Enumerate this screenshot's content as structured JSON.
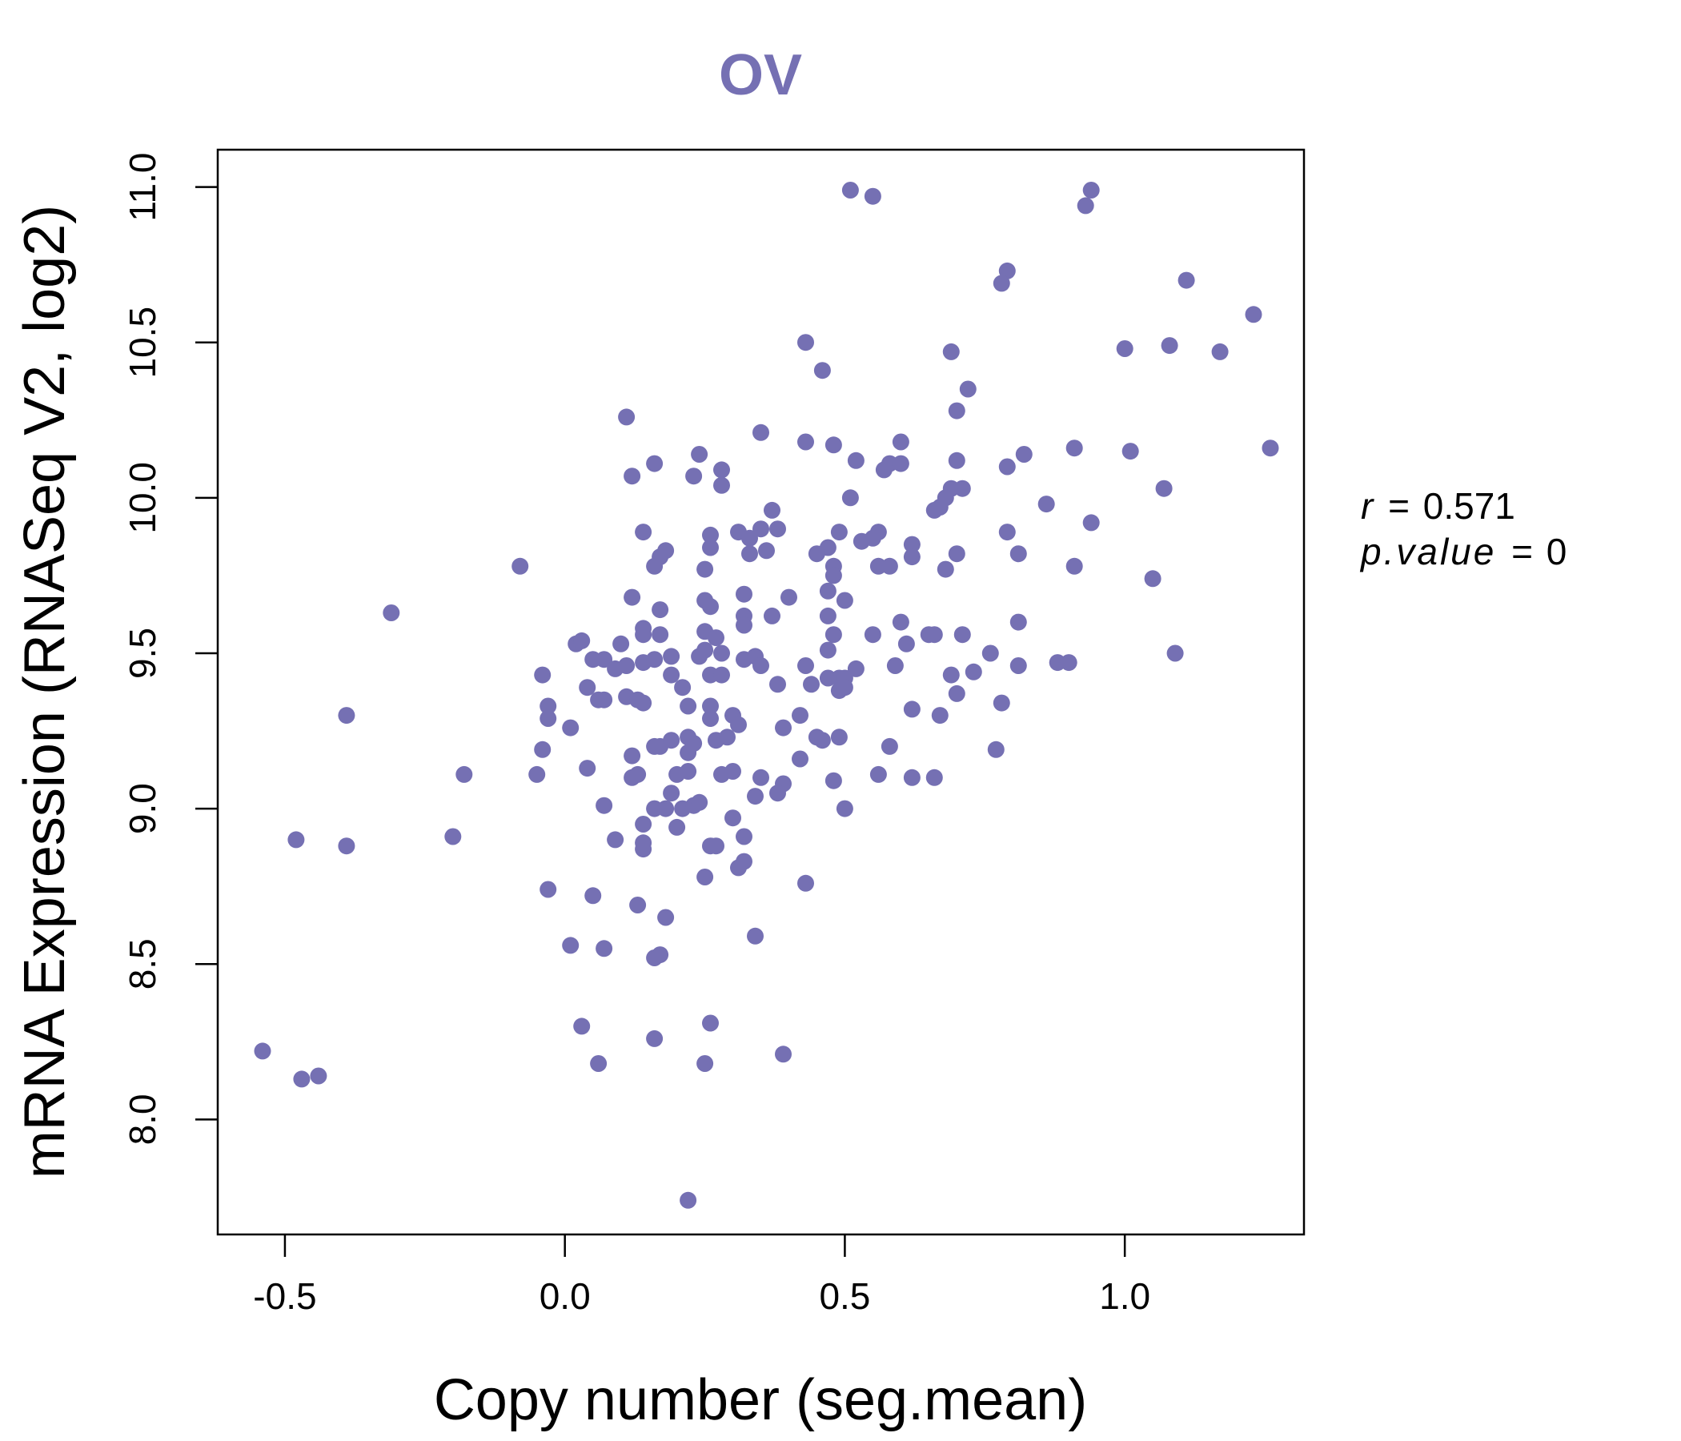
{
  "chart_data": {
    "type": "scatter",
    "title": "OV",
    "xlabel": "Copy number (seg.mean)",
    "ylabel": "mRNA Expression (RNASeq V2, log2)",
    "xlim": [
      -0.62,
      1.32
    ],
    "ylim": [
      7.63,
      11.12
    ],
    "xticks": [
      -0.5,
      0.0,
      0.5,
      1.0
    ],
    "xtick_labels": [
      "-0.5",
      "0.0",
      "0.5",
      "1.0"
    ],
    "yticks": [
      8.0,
      8.5,
      9.0,
      9.5,
      10.0,
      10.5,
      11.0
    ],
    "ytick_labels": [
      "8.0",
      "8.5",
      "9.0",
      "9.5",
      "10.0",
      "10.5",
      "11.0"
    ],
    "grid": false,
    "point_color": "#7570b3",
    "stats": {
      "r_label": "r",
      "r_value": "0.571",
      "p_label": "p.value",
      "p_value": "0"
    },
    "points": [
      [
        0.51,
        10.99
      ],
      [
        0.55,
        10.97
      ],
      [
        0.94,
        10.99
      ],
      [
        0.93,
        10.94
      ],
      [
        0.79,
        10.73
      ],
      [
        0.78,
        10.69
      ],
      [
        1.11,
        10.7
      ],
      [
        1.23,
        10.59
      ],
      [
        0.43,
        10.5
      ],
      [
        0.46,
        10.41
      ],
      [
        0.69,
        10.47
      ],
      [
        0.72,
        10.35
      ],
      [
        1.0,
        10.48
      ],
      [
        1.08,
        10.49
      ],
      [
        1.17,
        10.47
      ],
      [
        0.7,
        10.28
      ],
      [
        0.11,
        10.26
      ],
      [
        0.35,
        10.21
      ],
      [
        0.43,
        10.18
      ],
      [
        0.48,
        10.17
      ],
      [
        0.6,
        10.18
      ],
      [
        0.24,
        10.14
      ],
      [
        0.52,
        10.12
      ],
      [
        0.91,
        10.16
      ],
      [
        1.01,
        10.15
      ],
      [
        1.26,
        10.16
      ],
      [
        0.82,
        10.14
      ],
      [
        0.7,
        10.12
      ],
      [
        0.16,
        10.11
      ],
      [
        0.28,
        10.09
      ],
      [
        0.12,
        10.07
      ],
      [
        0.23,
        10.07
      ],
      [
        0.28,
        10.04
      ],
      [
        0.57,
        10.09
      ],
      [
        0.58,
        10.11
      ],
      [
        0.6,
        10.11
      ],
      [
        0.79,
        10.1
      ],
      [
        0.69,
        10.03
      ],
      [
        0.71,
        10.03
      ],
      [
        0.68,
        10.0
      ],
      [
        0.51,
        10.0
      ],
      [
        0.66,
        9.96
      ],
      [
        0.67,
        9.97
      ],
      [
        0.86,
        9.98
      ],
      [
        1.07,
        10.03
      ],
      [
        0.37,
        9.96
      ],
      [
        0.94,
        9.92
      ],
      [
        0.14,
        9.89
      ],
      [
        0.26,
        9.88
      ],
      [
        0.31,
        9.89
      ],
      [
        0.33,
        9.87
      ],
      [
        0.35,
        9.9
      ],
      [
        0.38,
        9.9
      ],
      [
        0.49,
        9.89
      ],
      [
        0.53,
        9.86
      ],
      [
        0.56,
        9.89
      ],
      [
        0.55,
        9.87
      ],
      [
        0.79,
        9.89
      ],
      [
        0.62,
        9.85
      ],
      [
        0.47,
        9.84
      ],
      [
        0.17,
        9.81
      ],
      [
        0.18,
        9.83
      ],
      [
        0.26,
        9.84
      ],
      [
        0.33,
        9.82
      ],
      [
        0.36,
        9.83
      ],
      [
        0.45,
        9.82
      ],
      [
        0.62,
        9.81
      ],
      [
        0.7,
        9.82
      ],
      [
        0.81,
        9.82
      ],
      [
        -0.08,
        9.78
      ],
      [
        0.16,
        9.78
      ],
      [
        0.25,
        9.77
      ],
      [
        0.48,
        9.78
      ],
      [
        0.56,
        9.78
      ],
      [
        0.58,
        9.78
      ],
      [
        0.68,
        9.77
      ],
      [
        0.91,
        9.78
      ],
      [
        0.48,
        9.75
      ],
      [
        0.47,
        9.7
      ],
      [
        1.05,
        9.74
      ],
      [
        0.12,
        9.68
      ],
      [
        0.32,
        9.69
      ],
      [
        0.4,
        9.68
      ],
      [
        0.17,
        9.64
      ],
      [
        0.25,
        9.67
      ],
      [
        0.26,
        9.65
      ],
      [
        0.5,
        9.67
      ],
      [
        0.32,
        9.62
      ],
      [
        0.37,
        9.62
      ],
      [
        0.47,
        9.62
      ],
      [
        0.32,
        9.59
      ],
      [
        0.6,
        9.6
      ],
      [
        0.81,
        9.6
      ],
      [
        -0.31,
        9.63
      ],
      [
        0.14,
        9.58
      ],
      [
        0.14,
        9.56
      ],
      [
        0.17,
        9.56
      ],
      [
        0.25,
        9.57
      ],
      [
        0.27,
        9.55
      ],
      [
        0.48,
        9.56
      ],
      [
        0.55,
        9.56
      ],
      [
        0.66,
        9.56
      ],
      [
        0.65,
        9.56
      ],
      [
        0.71,
        9.56
      ],
      [
        0.02,
        9.53
      ],
      [
        0.03,
        9.54
      ],
      [
        0.1,
        9.53
      ],
      [
        0.25,
        9.51
      ],
      [
        0.28,
        9.5
      ],
      [
        0.47,
        9.51
      ],
      [
        0.61,
        9.53
      ],
      [
        0.76,
        9.5
      ],
      [
        0.05,
        9.48
      ],
      [
        0.07,
        9.48
      ],
      [
        0.14,
        9.47
      ],
      [
        0.16,
        9.48
      ],
      [
        0.19,
        9.49
      ],
      [
        0.24,
        9.49
      ],
      [
        0.32,
        9.48
      ],
      [
        0.34,
        9.49
      ],
      [
        0.35,
        9.46
      ],
      [
        0.43,
        9.46
      ],
      [
        0.52,
        9.45
      ],
      [
        0.59,
        9.46
      ],
      [
        0.81,
        9.46
      ],
      [
        0.88,
        9.47
      ],
      [
        0.9,
        9.47
      ],
      [
        1.09,
        9.5
      ],
      [
        -0.04,
        9.43
      ],
      [
        0.09,
        9.45
      ],
      [
        0.11,
        9.46
      ],
      [
        0.19,
        9.43
      ],
      [
        0.26,
        9.43
      ],
      [
        0.28,
        9.43
      ],
      [
        0.47,
        9.42
      ],
      [
        0.49,
        9.42
      ],
      [
        0.5,
        9.42
      ],
      [
        0.69,
        9.43
      ],
      [
        0.73,
        9.44
      ],
      [
        0.04,
        9.39
      ],
      [
        0.06,
        9.35
      ],
      [
        0.07,
        9.35
      ],
      [
        0.11,
        9.36
      ],
      [
        0.13,
        9.35
      ],
      [
        0.14,
        9.34
      ],
      [
        0.21,
        9.39
      ],
      [
        0.26,
        9.33
      ],
      [
        0.38,
        9.4
      ],
      [
        0.44,
        9.4
      ],
      [
        0.49,
        9.38
      ],
      [
        0.5,
        9.39
      ],
      [
        0.7,
        9.37
      ],
      [
        -0.03,
        9.33
      ],
      [
        0.22,
        9.33
      ],
      [
        0.62,
        9.32
      ],
      [
        0.78,
        9.34
      ],
      [
        -0.39,
        9.3
      ],
      [
        -0.03,
        9.29
      ],
      [
        0.26,
        9.29
      ],
      [
        0.3,
        9.3
      ],
      [
        0.31,
        9.27
      ],
      [
        0.39,
        9.26
      ],
      [
        0.42,
        9.3
      ],
      [
        0.67,
        9.3
      ],
      [
        0.01,
        9.26
      ],
      [
        0.16,
        9.2
      ],
      [
        0.17,
        9.2
      ],
      [
        0.19,
        9.22
      ],
      [
        0.22,
        9.23
      ],
      [
        0.23,
        9.21
      ],
      [
        0.27,
        9.22
      ],
      [
        0.29,
        9.23
      ],
      [
        0.45,
        9.23
      ],
      [
        0.46,
        9.22
      ],
      [
        0.49,
        9.23
      ],
      [
        0.58,
        9.2
      ],
      [
        -0.04,
        9.19
      ],
      [
        0.12,
        9.17
      ],
      [
        0.22,
        9.18
      ],
      [
        0.42,
        9.16
      ],
      [
        0.77,
        9.19
      ],
      [
        -0.18,
        9.11
      ],
      [
        -0.05,
        9.11
      ],
      [
        0.04,
        9.13
      ],
      [
        0.12,
        9.1
      ],
      [
        0.13,
        9.11
      ],
      [
        0.2,
        9.11
      ],
      [
        0.22,
        9.12
      ],
      [
        0.28,
        9.11
      ],
      [
        0.3,
        9.12
      ],
      [
        0.35,
        9.1
      ],
      [
        0.48,
        9.09
      ],
      [
        0.56,
        9.11
      ],
      [
        0.62,
        9.1
      ],
      [
        0.66,
        9.1
      ],
      [
        0.19,
        9.05
      ],
      [
        0.39,
        9.08
      ],
      [
        0.38,
        9.05
      ],
      [
        0.07,
        9.01
      ],
      [
        0.16,
        9.0
      ],
      [
        0.18,
        9.0
      ],
      [
        0.21,
        9.0
      ],
      [
        0.23,
        9.01
      ],
      [
        0.24,
        9.02
      ],
      [
        0.34,
        9.04
      ],
      [
        0.5,
        9.0
      ],
      [
        0.3,
        8.97
      ],
      [
        0.14,
        8.95
      ],
      [
        0.2,
        8.94
      ],
      [
        0.09,
        8.9
      ],
      [
        -0.48,
        8.9
      ],
      [
        -0.39,
        8.88
      ],
      [
        -0.2,
        8.91
      ],
      [
        0.14,
        8.87
      ],
      [
        0.14,
        8.89
      ],
      [
        0.26,
        8.88
      ],
      [
        0.27,
        8.88
      ],
      [
        0.32,
        8.91
      ],
      [
        0.31,
        8.81
      ],
      [
        0.32,
        8.83
      ],
      [
        0.25,
        8.78
      ],
      [
        0.43,
        8.76
      ],
      [
        -0.03,
        8.74
      ],
      [
        0.05,
        8.72
      ],
      [
        0.13,
        8.69
      ],
      [
        0.18,
        8.65
      ],
      [
        0.34,
        8.59
      ],
      [
        0.01,
        8.56
      ],
      [
        0.07,
        8.55
      ],
      [
        0.17,
        8.53
      ],
      [
        0.16,
        8.52
      ],
      [
        0.03,
        8.3
      ],
      [
        0.26,
        8.31
      ],
      [
        0.16,
        8.26
      ],
      [
        0.39,
        8.21
      ],
      [
        -0.54,
        8.22
      ],
      [
        -0.44,
        8.14
      ],
      [
        -0.47,
        8.13
      ],
      [
        0.06,
        8.18
      ],
      [
        0.25,
        8.18
      ],
      [
        0.22,
        7.74
      ]
    ]
  }
}
